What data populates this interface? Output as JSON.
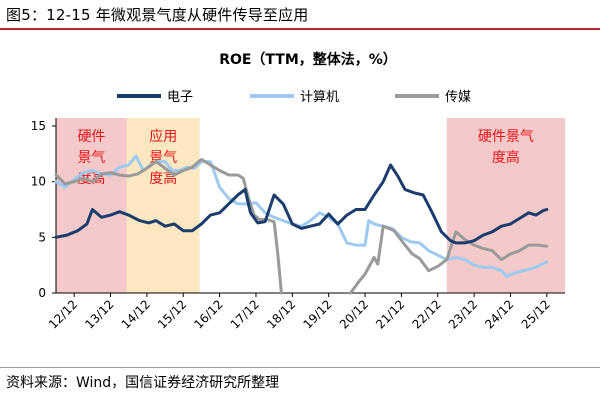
{
  "figure": {
    "title": "图5：12-15 年微观景气度从硬件传导至应用",
    "source": "资料来源：Wind，国信证券经济研究所整理"
  },
  "chart_data": {
    "type": "line",
    "title": "ROE（TTM，整体法，%）",
    "xlabel": "",
    "ylabel": "",
    "ylim": [
      0,
      15
    ],
    "yticks": [
      0,
      5,
      10,
      15
    ],
    "grid": false,
    "legend_position": "top",
    "x_range": [
      2012.0,
      2026.0
    ],
    "xtick_labels": [
      "12/12",
      "13/12",
      "14/12",
      "15/12",
      "16/12",
      "17/12",
      "18/12",
      "19/12",
      "20/12",
      "21/12",
      "22/12",
      "23/12",
      "24/12",
      "25/12"
    ],
    "regions": [
      {
        "label_lines": [
          "硬件",
          "景气",
          "度高"
        ],
        "x_start": 2012.0,
        "x_end": 2013.95,
        "color": "#f4c9c9"
      },
      {
        "label_lines": [
          "应用",
          "景气",
          "度高"
        ],
        "x_start": 2013.95,
        "x_end": 2015.95,
        "color": "#fbe8c0"
      },
      {
        "label_lines": [
          "硬件景气",
          "度高"
        ],
        "x_start": 2022.75,
        "x_end": 2026.0,
        "color": "#f4c9c9"
      }
    ],
    "series": [
      {
        "name": "电子",
        "color": "#1a3d6d",
        "points": [
          [
            2012.0,
            5.0
          ],
          [
            2012.3,
            5.2
          ],
          [
            2012.6,
            5.6
          ],
          [
            2012.85,
            6.2
          ],
          [
            2013.0,
            7.5
          ],
          [
            2013.25,
            6.8
          ],
          [
            2013.5,
            7.0
          ],
          [
            2013.75,
            7.3
          ],
          [
            2014.0,
            7.0
          ],
          [
            2014.3,
            6.5
          ],
          [
            2014.55,
            6.3
          ],
          [
            2014.75,
            6.5
          ],
          [
            2015.0,
            6.0
          ],
          [
            2015.25,
            6.2
          ],
          [
            2015.5,
            5.6
          ],
          [
            2015.75,
            5.6
          ],
          [
            2016.0,
            6.2
          ],
          [
            2016.25,
            7.0
          ],
          [
            2016.5,
            7.2
          ],
          [
            2016.75,
            8.0
          ],
          [
            2017.0,
            8.8
          ],
          [
            2017.2,
            9.3
          ],
          [
            2017.35,
            7.2
          ],
          [
            2017.55,
            6.3
          ],
          [
            2017.75,
            6.4
          ],
          [
            2018.0,
            8.8
          ],
          [
            2018.25,
            8.0
          ],
          [
            2018.5,
            6.2
          ],
          [
            2018.75,
            5.8
          ],
          [
            2019.0,
            6.0
          ],
          [
            2019.25,
            6.2
          ],
          [
            2019.5,
            7.1
          ],
          [
            2019.75,
            6.2
          ],
          [
            2020.0,
            7.0
          ],
          [
            2020.25,
            7.5
          ],
          [
            2020.5,
            7.5
          ],
          [
            2020.75,
            8.8
          ],
          [
            2021.0,
            10.0
          ],
          [
            2021.2,
            11.5
          ],
          [
            2021.4,
            10.5
          ],
          [
            2021.6,
            9.3
          ],
          [
            2021.85,
            9.0
          ],
          [
            2022.1,
            8.8
          ],
          [
            2022.35,
            7.2
          ],
          [
            2022.6,
            5.5
          ],
          [
            2022.85,
            4.7
          ],
          [
            2023.0,
            4.5
          ],
          [
            2023.25,
            4.5
          ],
          [
            2023.5,
            4.7
          ],
          [
            2023.75,
            5.2
          ],
          [
            2024.0,
            5.5
          ],
          [
            2024.25,
            6.0
          ],
          [
            2024.5,
            6.2
          ],
          [
            2024.75,
            6.7
          ],
          [
            2025.0,
            7.2
          ],
          [
            2025.2,
            7.0
          ],
          [
            2025.4,
            7.4
          ],
          [
            2025.5,
            7.5
          ]
        ]
      },
      {
        "name": "计算机",
        "color": "#9ccaf0",
        "points": [
          [
            2012.0,
            10.0
          ],
          [
            2012.25,
            9.5
          ],
          [
            2012.5,
            10.2
          ],
          [
            2012.75,
            10.8
          ],
          [
            2013.0,
            11.0
          ],
          [
            2013.25,
            10.7
          ],
          [
            2013.5,
            10.6
          ],
          [
            2013.75,
            11.3
          ],
          [
            2014.0,
            11.5
          ],
          [
            2014.2,
            12.3
          ],
          [
            2014.4,
            11.0
          ],
          [
            2014.6,
            11.5
          ],
          [
            2014.8,
            11.8
          ],
          [
            2015.0,
            11.8
          ],
          [
            2015.2,
            11.0
          ],
          [
            2015.4,
            11.0
          ],
          [
            2015.6,
            11.3
          ],
          [
            2015.8,
            11.2
          ],
          [
            2016.0,
            11.8
          ],
          [
            2016.25,
            11.8
          ],
          [
            2016.5,
            9.5
          ],
          [
            2016.75,
            8.5
          ],
          [
            2017.0,
            8.0
          ],
          [
            2017.25,
            8.0
          ],
          [
            2017.5,
            8.1
          ],
          [
            2017.75,
            7.2
          ],
          [
            2018.0,
            6.8
          ],
          [
            2018.25,
            6.5
          ],
          [
            2018.5,
            6.2
          ],
          [
            2018.75,
            6.0
          ],
          [
            2019.0,
            6.5
          ],
          [
            2019.25,
            7.2
          ],
          [
            2019.5,
            6.8
          ],
          [
            2019.75,
            6.2
          ],
          [
            2020.0,
            4.5
          ],
          [
            2020.25,
            4.3
          ],
          [
            2020.5,
            4.3
          ],
          [
            2020.6,
            6.5
          ],
          [
            2020.75,
            6.2
          ],
          [
            2021.0,
            6.0
          ],
          [
            2021.25,
            5.8
          ],
          [
            2021.5,
            5.0
          ],
          [
            2021.75,
            4.6
          ],
          [
            2022.0,
            4.5
          ],
          [
            2022.25,
            3.8
          ],
          [
            2022.5,
            3.4
          ],
          [
            2022.75,
            3.0
          ],
          [
            2023.0,
            3.2
          ],
          [
            2023.25,
            3.0
          ],
          [
            2023.5,
            2.5
          ],
          [
            2023.75,
            2.3
          ],
          [
            2024.0,
            2.3
          ],
          [
            2024.25,
            2.0
          ],
          [
            2024.4,
            1.5
          ],
          [
            2024.6,
            1.8
          ],
          [
            2024.85,
            2.0
          ],
          [
            2025.0,
            2.1
          ],
          [
            2025.25,
            2.4
          ],
          [
            2025.5,
            2.8
          ]
        ]
      },
      {
        "name": "传媒",
        "color": "#9a9a9a",
        "segments": [
          [
            [
              2012.0,
              10.6
            ],
            [
              2012.25,
              9.8
            ],
            [
              2012.5,
              10.0
            ],
            [
              2012.75,
              10.3
            ],
            [
              2013.0,
              10.0
            ],
            [
              2013.25,
              10.7
            ],
            [
              2013.5,
              10.8
            ],
            [
              2013.75,
              10.6
            ],
            [
              2014.0,
              10.5
            ],
            [
              2014.25,
              10.7
            ],
            [
              2014.5,
              11.2
            ],
            [
              2014.75,
              11.8
            ],
            [
              2015.0,
              11.2
            ],
            [
              2015.25,
              10.6
            ],
            [
              2015.5,
              11.0
            ],
            [
              2015.75,
              11.3
            ],
            [
              2016.0,
              12.0
            ],
            [
              2016.25,
              11.5
            ],
            [
              2016.5,
              11.0
            ],
            [
              2016.75,
              10.6
            ],
            [
              2017.0,
              10.6
            ],
            [
              2017.15,
              10.3
            ],
            [
              2017.3,
              8.5
            ],
            [
              2017.45,
              7.0
            ],
            [
              2017.6,
              6.6
            ],
            [
              2017.8,
              6.6
            ],
            [
              2018.0,
              6.4
            ],
            [
              2018.1,
              3.5
            ],
            [
              2018.2,
              0.0
            ]
          ],
          [
            [
              2020.1,
              0.0
            ],
            [
              2020.3,
              0.9
            ],
            [
              2020.5,
              1.7
            ],
            [
              2020.75,
              3.2
            ],
            [
              2020.85,
              2.6
            ],
            [
              2021.0,
              6.0
            ],
            [
              2021.15,
              5.8
            ],
            [
              2021.3,
              5.6
            ],
            [
              2021.6,
              4.3
            ],
            [
              2021.8,
              3.5
            ],
            [
              2022.0,
              3.1
            ],
            [
              2022.25,
              2.0
            ],
            [
              2022.5,
              2.4
            ],
            [
              2022.75,
              3.0
            ],
            [
              2023.0,
              5.5
            ],
            [
              2023.25,
              4.8
            ],
            [
              2023.5,
              4.3
            ],
            [
              2023.75,
              4.0
            ],
            [
              2024.0,
              3.8
            ],
            [
              2024.25,
              3.0
            ],
            [
              2024.5,
              3.5
            ],
            [
              2024.75,
              3.8
            ],
            [
              2025.0,
              4.3
            ],
            [
              2025.25,
              4.3
            ],
            [
              2025.5,
              4.2
            ]
          ]
        ]
      }
    ]
  }
}
